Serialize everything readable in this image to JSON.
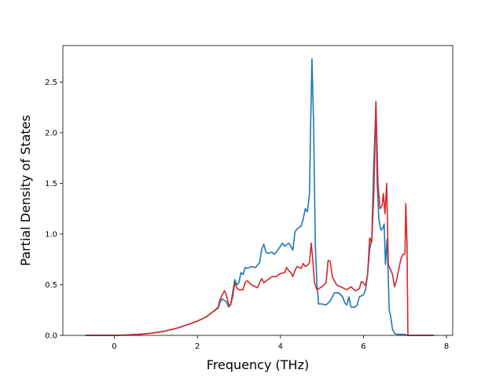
{
  "chart_data": {
    "type": "line",
    "title": "",
    "xlabel": "Frequency (THz)",
    "ylabel": "Partial Density of States",
    "xlim": [
      -1.24,
      8.15
    ],
    "ylim": [
      0.0,
      2.86
    ],
    "xticks": [
      0,
      2,
      4,
      6,
      8
    ],
    "yticks": [
      0.0,
      0.5,
      1.0,
      1.5,
      2.0,
      2.5
    ],
    "xtick_labels": [
      "0",
      "2",
      "4",
      "6",
      "8"
    ],
    "ytick_labels": [
      "0.0",
      "0.5",
      "1.0",
      "1.5",
      "2.0",
      "2.5"
    ],
    "grid": false,
    "legend": "none",
    "series": [
      {
        "color": "#1f77b4",
        "points": [
          [
            -0.7,
            0.0
          ],
          [
            0.0,
            0.0
          ],
          [
            0.3,
            0.003
          ],
          [
            0.6,
            0.01
          ],
          [
            0.9,
            0.022
          ],
          [
            1.2,
            0.04
          ],
          [
            1.5,
            0.07
          ],
          [
            1.8,
            0.11
          ],
          [
            2.0,
            0.14
          ],
          [
            2.2,
            0.18
          ],
          [
            2.4,
            0.24
          ],
          [
            2.5,
            0.27
          ],
          [
            2.55,
            0.33
          ],
          [
            2.6,
            0.36
          ],
          [
            2.7,
            0.33
          ],
          [
            2.75,
            0.28
          ],
          [
            2.8,
            0.3
          ],
          [
            2.85,
            0.42
          ],
          [
            2.9,
            0.55
          ],
          [
            2.95,
            0.5
          ],
          [
            3.0,
            0.52
          ],
          [
            3.05,
            0.62
          ],
          [
            3.1,
            0.6
          ],
          [
            3.15,
            0.67
          ],
          [
            3.2,
            0.66
          ],
          [
            3.3,
            0.68
          ],
          [
            3.4,
            0.67
          ],
          [
            3.5,
            0.72
          ],
          [
            3.55,
            0.85
          ],
          [
            3.6,
            0.9
          ],
          [
            3.65,
            0.82
          ],
          [
            3.7,
            0.81
          ],
          [
            3.8,
            0.82
          ],
          [
            3.85,
            0.8
          ],
          [
            3.9,
            0.82
          ],
          [
            4.0,
            0.88
          ],
          [
            4.05,
            0.91
          ],
          [
            4.1,
            0.88
          ],
          [
            4.2,
            0.91
          ],
          [
            4.25,
            0.88
          ],
          [
            4.3,
            0.84
          ],
          [
            4.35,
            1.02
          ],
          [
            4.4,
            1.05
          ],
          [
            4.5,
            1.08
          ],
          [
            4.55,
            1.15
          ],
          [
            4.6,
            1.25
          ],
          [
            4.65,
            1.22
          ],
          [
            4.7,
            1.4
          ],
          [
            4.73,
            2.1
          ],
          [
            4.76,
            2.73
          ],
          [
            4.8,
            2.1
          ],
          [
            4.84,
            0.9
          ],
          [
            4.88,
            0.5
          ],
          [
            4.92,
            0.31
          ],
          [
            5.0,
            0.31
          ],
          [
            5.1,
            0.3
          ],
          [
            5.2,
            0.34
          ],
          [
            5.3,
            0.42
          ],
          [
            5.4,
            0.42
          ],
          [
            5.5,
            0.38
          ],
          [
            5.55,
            0.32
          ],
          [
            5.6,
            0.3
          ],
          [
            5.65,
            0.38
          ],
          [
            5.7,
            0.28
          ],
          [
            5.8,
            0.28
          ],
          [
            5.85,
            0.3
          ],
          [
            5.9,
            0.38
          ],
          [
            6.0,
            0.4
          ],
          [
            6.05,
            0.45
          ],
          [
            6.1,
            0.6
          ],
          [
            6.15,
            0.85
          ],
          [
            6.2,
            0.95
          ],
          [
            6.25,
            1.7
          ],
          [
            6.3,
            2.26
          ],
          [
            6.33,
            1.5
          ],
          [
            6.37,
            1.15
          ],
          [
            6.42,
            1.04
          ],
          [
            6.46,
            1.05
          ],
          [
            6.5,
            1.1
          ],
          [
            6.53,
            0.7
          ],
          [
            6.57,
            0.95
          ],
          [
            6.6,
            0.55
          ],
          [
            6.62,
            0.25
          ],
          [
            6.65,
            0.2
          ],
          [
            6.7,
            0.06
          ],
          [
            6.75,
            0.02
          ],
          [
            6.8,
            0.01
          ],
          [
            7.0,
            0.01
          ],
          [
            7.05,
            0.0
          ],
          [
            7.7,
            0.0
          ]
        ]
      },
      {
        "color": "#d62728",
        "points": [
          [
            -0.7,
            0.0
          ],
          [
            0.0,
            0.0
          ],
          [
            0.3,
            0.003
          ],
          [
            0.6,
            0.01
          ],
          [
            0.9,
            0.022
          ],
          [
            1.2,
            0.04
          ],
          [
            1.5,
            0.07
          ],
          [
            1.8,
            0.11
          ],
          [
            2.0,
            0.14
          ],
          [
            2.2,
            0.18
          ],
          [
            2.4,
            0.24
          ],
          [
            2.5,
            0.28
          ],
          [
            2.55,
            0.36
          ],
          [
            2.6,
            0.4
          ],
          [
            2.65,
            0.44
          ],
          [
            2.7,
            0.4
          ],
          [
            2.75,
            0.3
          ],
          [
            2.8,
            0.3
          ],
          [
            2.85,
            0.38
          ],
          [
            2.9,
            0.52
          ],
          [
            2.95,
            0.47
          ],
          [
            3.0,
            0.45
          ],
          [
            3.05,
            0.45
          ],
          [
            3.1,
            0.45
          ],
          [
            3.15,
            0.52
          ],
          [
            3.2,
            0.54
          ],
          [
            3.3,
            0.5
          ],
          [
            3.4,
            0.48
          ],
          [
            3.45,
            0.47
          ],
          [
            3.5,
            0.52
          ],
          [
            3.55,
            0.56
          ],
          [
            3.6,
            0.52
          ],
          [
            3.7,
            0.55
          ],
          [
            3.8,
            0.58
          ],
          [
            3.9,
            0.58
          ],
          [
            4.0,
            0.61
          ],
          [
            4.1,
            0.62
          ],
          [
            4.15,
            0.67
          ],
          [
            4.2,
            0.64
          ],
          [
            4.25,
            0.62
          ],
          [
            4.3,
            0.58
          ],
          [
            4.35,
            0.64
          ],
          [
            4.4,
            0.68
          ],
          [
            4.5,
            0.66
          ],
          [
            4.55,
            0.71
          ],
          [
            4.6,
            0.68
          ],
          [
            4.65,
            0.69
          ],
          [
            4.7,
            0.72
          ],
          [
            4.74,
            0.91
          ],
          [
            4.78,
            0.75
          ],
          [
            4.82,
            0.52
          ],
          [
            4.88,
            0.45
          ],
          [
            5.0,
            0.48
          ],
          [
            5.1,
            0.52
          ],
          [
            5.15,
            0.74
          ],
          [
            5.2,
            0.73
          ],
          [
            5.25,
            0.58
          ],
          [
            5.35,
            0.5
          ],
          [
            5.5,
            0.47
          ],
          [
            5.6,
            0.45
          ],
          [
            5.7,
            0.48
          ],
          [
            5.8,
            0.44
          ],
          [
            5.9,
            0.46
          ],
          [
            5.95,
            0.53
          ],
          [
            6.0,
            0.52
          ],
          [
            6.05,
            0.49
          ],
          [
            6.1,
            0.6
          ],
          [
            6.15,
            0.96
          ],
          [
            6.2,
            0.92
          ],
          [
            6.25,
            1.4
          ],
          [
            6.3,
            2.31
          ],
          [
            6.35,
            1.5
          ],
          [
            6.4,
            1.25
          ],
          [
            6.45,
            1.28
          ],
          [
            6.48,
            1.4
          ],
          [
            6.52,
            1.2
          ],
          [
            6.56,
            1.5
          ],
          [
            6.6,
            0.7
          ],
          [
            6.65,
            0.65
          ],
          [
            6.7,
            0.6
          ],
          [
            6.75,
            0.48
          ],
          [
            6.8,
            0.55
          ],
          [
            6.9,
            0.75
          ],
          [
            6.95,
            0.8
          ],
          [
            7.0,
            0.8
          ],
          [
            7.02,
            1.3
          ],
          [
            7.05,
            0.9
          ],
          [
            7.07,
            0.0
          ],
          [
            7.7,
            0.0
          ]
        ]
      }
    ]
  }
}
